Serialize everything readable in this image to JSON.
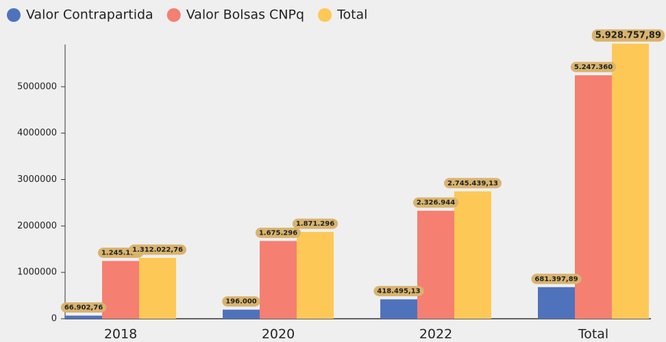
{
  "chart_data": {
    "type": "bar",
    "categories": [
      "2018",
      "2020",
      "2022",
      "Total"
    ],
    "series": [
      {
        "name": "Valor Contrapartida",
        "color": "#4f72bd",
        "values": [
          66902.76,
          196000,
          418495.13,
          681397.89
        ],
        "value_labels": [
          "66.902,76",
          "196.000",
          "418.495,13",
          "681.397,89"
        ]
      },
      {
        "name": "Valor Bolsas CNPq",
        "color": "#f57f71",
        "values": [
          1245120,
          1675296,
          2326944,
          5247360
        ],
        "value_labels": [
          "1.245.120",
          "1.675.296",
          "2.326.944",
          "5.247.360"
        ]
      },
      {
        "name": "Total",
        "color": "#fec857",
        "values": [
          1312022.76,
          1871296,
          2745439.13,
          5928757.89
        ],
        "value_labels": [
          "1.312.022,76",
          "1.871.296",
          "2.745.439,13",
          "5.928.757,89"
        ]
      }
    ],
    "ylim": [
      0,
      6000000
    ],
    "yticks": [
      0,
      1000000,
      2000000,
      3000000,
      4000000,
      5000000
    ],
    "grid": false
  }
}
